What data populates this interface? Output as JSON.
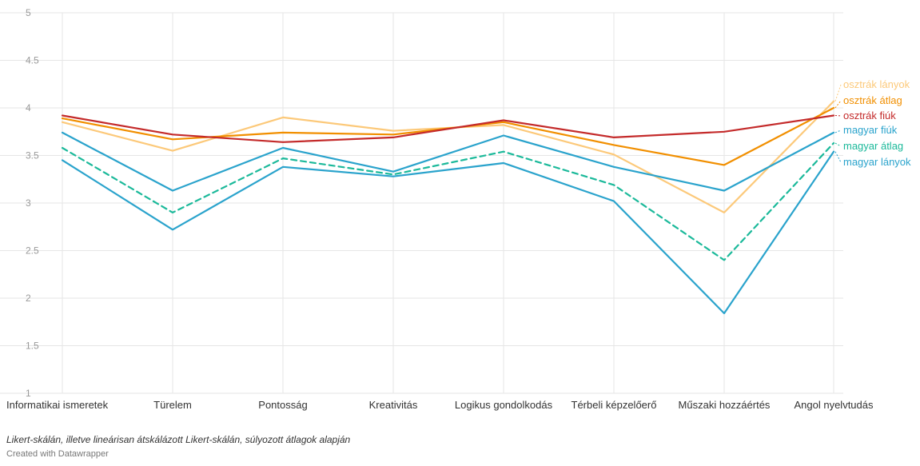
{
  "chart_data": {
    "type": "line",
    "categories": [
      "Informatikai ismeretek",
      "Türelem",
      "Pontosság",
      "Kreativitás",
      "Logikus gondolkodás",
      "Térbeli képzelőerő",
      "Műszaki hozzáértés",
      "Angol nyelvtudás"
    ],
    "ylim": [
      1,
      5
    ],
    "yticks": [
      "1",
      "1.5",
      "2",
      "2.5",
      "3",
      "3.5",
      "4",
      "4.5",
      "5"
    ],
    "grid": true,
    "legend": "direct labels at right end of lines",
    "series": [
      {
        "name": "osztrák lányok",
        "color": "#fcc97a",
        "dashed": false,
        "values": [
          3.85,
          3.55,
          3.9,
          3.76,
          3.82,
          3.51,
          2.9,
          4.07
        ]
      },
      {
        "name": "osztrák átlag",
        "color": "#f18f00",
        "dashed": false,
        "values": [
          3.89,
          3.67,
          3.74,
          3.72,
          3.85,
          3.61,
          3.4,
          4.0
        ]
      },
      {
        "name": "osztrák fiúk",
        "color": "#c42b2b",
        "dashed": false,
        "values": [
          3.92,
          3.72,
          3.64,
          3.69,
          3.87,
          3.69,
          3.75,
          3.92
        ]
      },
      {
        "name": "magyar fiúk",
        "color": "#2aa3cc",
        "dashed": false,
        "values": [
          3.74,
          3.13,
          3.58,
          3.33,
          3.71,
          3.38,
          3.13,
          3.74
        ]
      },
      {
        "name": "magyar átlag",
        "color": "#1bb99a",
        "dashed": true,
        "values": [
          3.58,
          2.9,
          3.47,
          3.3,
          3.54,
          3.19,
          2.4,
          3.63
        ]
      },
      {
        "name": "magyar lányok",
        "color": "#2aa3cc",
        "dashed": false,
        "values": [
          3.45,
          2.72,
          3.38,
          3.28,
          3.42,
          3.02,
          1.84,
          3.54
        ]
      }
    ],
    "caption": "Likert-skálán, illetve lineárisan átskálázott Likert-skálán, súlyozott átlagok alapján",
    "credit": "Created with Datawrapper"
  },
  "colors": {
    "grid": "#e6e6e6",
    "tick_text": "#999999",
    "category_text": "#333333"
  }
}
